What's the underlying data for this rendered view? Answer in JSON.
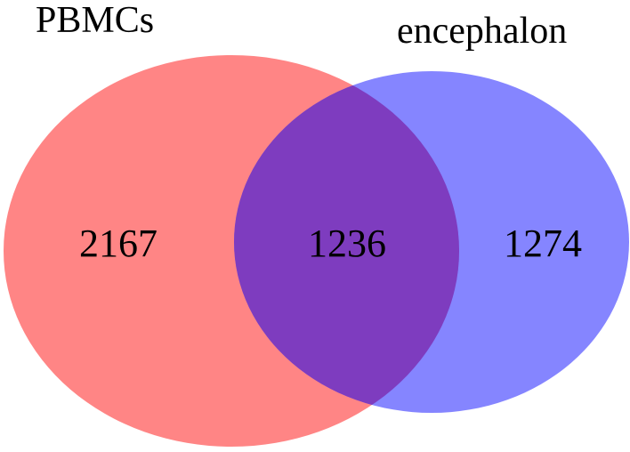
{
  "chart_data": {
    "type": "venn",
    "sets": [
      {
        "name": "PBMCs",
        "only_count": "2167",
        "color": "#FF6666",
        "opacity": 0.8
      },
      {
        "name": "encephalon",
        "only_count": "1274",
        "color": "#6666FF",
        "opacity": 0.8
      }
    ],
    "intersection": {
      "count": "1236",
      "color": "#7E3CBF"
    }
  }
}
